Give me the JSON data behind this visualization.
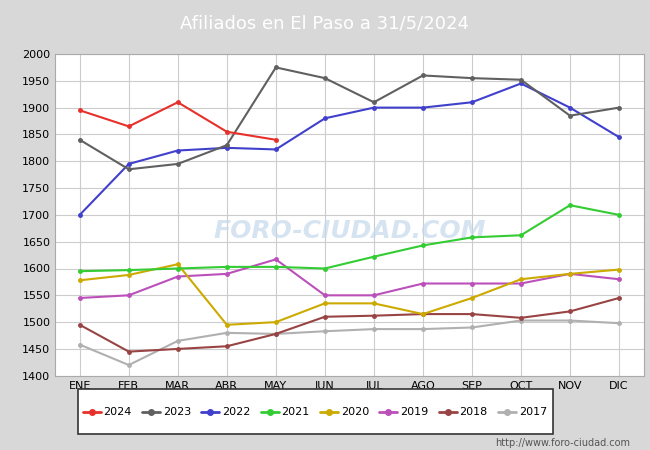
{
  "title": "Afiliados en El Paso a 31/5/2024",
  "title_bg_color": "#5b9bd5",
  "title_text_color": "white",
  "months": [
    "ENE",
    "FEB",
    "MAR",
    "ABR",
    "MAY",
    "JUN",
    "JUL",
    "AGO",
    "SEP",
    "OCT",
    "NOV",
    "DIC"
  ],
  "ylim": [
    1400,
    2000
  ],
  "yticks": [
    1400,
    1450,
    1500,
    1550,
    1600,
    1650,
    1700,
    1750,
    1800,
    1850,
    1900,
    1950,
    2000
  ],
  "series": {
    "2024": {
      "color": "#e8302a",
      "data": [
        1895,
        1865,
        1910,
        1855,
        1840,
        null,
        null,
        null,
        null,
        null,
        null,
        null
      ]
    },
    "2023": {
      "color": "#606060",
      "data": [
        1840,
        1785,
        1795,
        1830,
        1975,
        1955,
        1910,
        1960,
        1955,
        1952,
        1885,
        1900
      ]
    },
    "2022": {
      "color": "#4040cc",
      "data": [
        1700,
        1795,
        1820,
        1825,
        1822,
        1880,
        1900,
        1900,
        1910,
        1945,
        1900,
        1845
      ]
    },
    "2021": {
      "color": "#33cc33",
      "data": [
        1595,
        1597,
        1600,
        1603,
        1603,
        1600,
        1622,
        1643,
        1658,
        1662,
        1718,
        1700
      ]
    },
    "2020": {
      "color": "#ccaa00",
      "data": [
        1578,
        1588,
        1608,
        1495,
        1500,
        1535,
        1535,
        1515,
        1545,
        1580,
        1590,
        1598
      ]
    },
    "2019": {
      "color": "#bb50bb",
      "data": [
        1545,
        1550,
        1585,
        1590,
        1617,
        1550,
        1550,
        1572,
        1572,
        1572,
        1590,
        1580
      ]
    },
    "2018": {
      "color": "#994444",
      "data": [
        1495,
        1445,
        1450,
        1455,
        1478,
        1510,
        1512,
        1515,
        1515,
        1508,
        1520,
        1545
      ]
    },
    "2017": {
      "color": "#b0b0b0",
      "data": [
        1458,
        1420,
        1465,
        1480,
        1478,
        1483,
        1487,
        1487,
        1490,
        1503,
        1503,
        1498
      ]
    }
  },
  "watermark": "FORO-CIUDAD.COM",
  "url": "http://www.foro-ciudad.com",
  "legend_order": [
    "2024",
    "2023",
    "2022",
    "2021",
    "2020",
    "2019",
    "2018",
    "2017"
  ],
  "grid_color": "#cccccc",
  "outer_bg_color": "#d8d8d8",
  "plot_bg_color": "#e8e8e8",
  "inner_plot_bg": "#ffffff"
}
